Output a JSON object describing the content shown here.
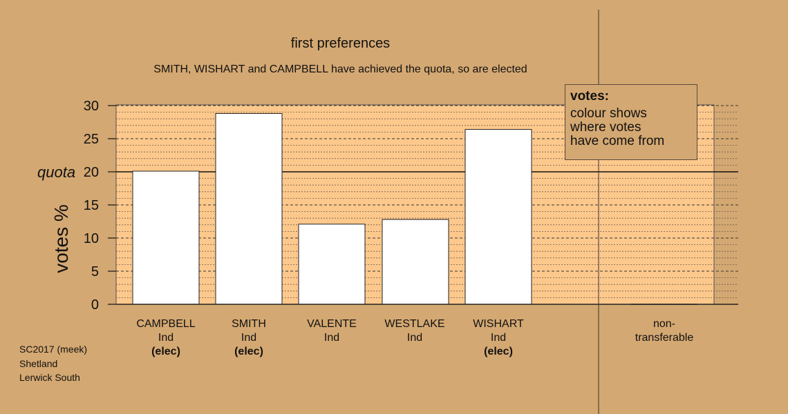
{
  "chart_data": {
    "type": "bar",
    "title": "first preferences",
    "subtitle": "SMITH, WISHART and CAMPBELL have achieved the quota, so are elected",
    "ylabel": "votes %",
    "ylim": [
      0,
      30
    ],
    "yticks": [
      0,
      5,
      10,
      15,
      20,
      25,
      30
    ],
    "quota": 20,
    "quota_label": "quota",
    "grid": true,
    "categories": [
      {
        "name": "CAMPBELL",
        "party": "Ind",
        "status": "(elec)",
        "value": 20.1
      },
      {
        "name": "SMITH",
        "party": "Ind",
        "status": "(elec)",
        "value": 28.8
      },
      {
        "name": "VALENTE",
        "party": "Ind",
        "status": "",
        "value": 12.1
      },
      {
        "name": "WESTLAKE",
        "party": "Ind",
        "status": "",
        "value": 12.8
      },
      {
        "name": "WISHART",
        "party": "Ind",
        "status": "(elec)",
        "value": 26.4
      }
    ],
    "nontransferable": {
      "label_line1": "non-",
      "label_line2": "transferable",
      "value": 0
    },
    "legend": {
      "title": "votes:",
      "line1": "colour shows",
      "line2": "where votes",
      "line3": "have come from"
    },
    "colors": {
      "background": "#d4a872",
      "plot_band": "#fdc88c",
      "bar": "#ffffff"
    }
  },
  "footer": {
    "line1": "SC2017 (meek)",
    "line2": "Shetland",
    "line3": "Lerwick South"
  }
}
